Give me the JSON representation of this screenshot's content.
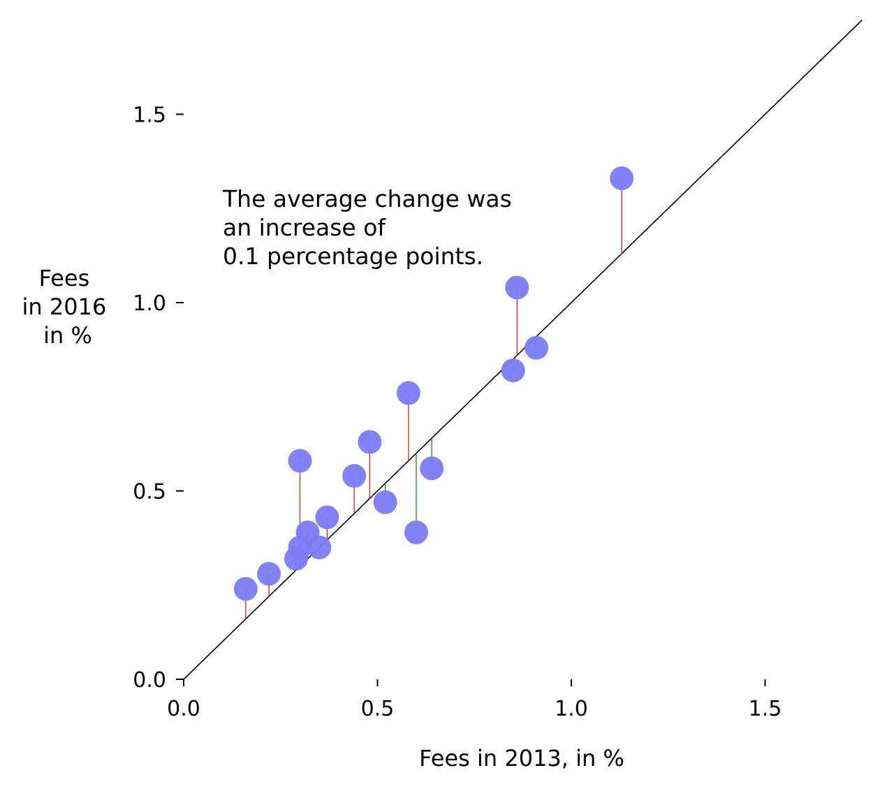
{
  "chart_data": {
    "type": "scatter",
    "title": "",
    "xlabel": "Fees in 2013, in %",
    "ylabel": [
      "Fees",
      "in 2016",
      "in %"
    ],
    "xlim": [
      0.0,
      1.75
    ],
    "ylim": [
      0.0,
      1.8
    ],
    "xticks": [
      "0.0",
      "0.5",
      "1.0",
      "1.5"
    ],
    "yticks": [
      "0.0",
      "0.5",
      "1.0",
      "1.5"
    ],
    "grid": false,
    "reference_line": "y = x",
    "colors": {
      "point": "#7b7bf7",
      "increase": "#e01b1b",
      "decrease": "#1a8a1a",
      "reference": "#000000"
    },
    "points": [
      {
        "x": 0.16,
        "y": 0.24
      },
      {
        "x": 0.22,
        "y": 0.28
      },
      {
        "x": 0.29,
        "y": 0.32
      },
      {
        "x": 0.3,
        "y": 0.35
      },
      {
        "x": 0.3,
        "y": 0.58
      },
      {
        "x": 0.32,
        "y": 0.39
      },
      {
        "x": 0.35,
        "y": 0.35
      },
      {
        "x": 0.37,
        "y": 0.43
      },
      {
        "x": 0.44,
        "y": 0.54
      },
      {
        "x": 0.48,
        "y": 0.63
      },
      {
        "x": 0.52,
        "y": 0.47
      },
      {
        "x": 0.58,
        "y": 0.76
      },
      {
        "x": 0.6,
        "y": 0.39
      },
      {
        "x": 0.64,
        "y": 0.56
      },
      {
        "x": 0.85,
        "y": 0.82
      },
      {
        "x": 0.86,
        "y": 1.04
      },
      {
        "x": 0.91,
        "y": 0.88
      },
      {
        "x": 1.13,
        "y": 1.33
      }
    ],
    "annotation": [
      "The average change was",
      "an increase of",
      "0.1 percentage points."
    ]
  }
}
